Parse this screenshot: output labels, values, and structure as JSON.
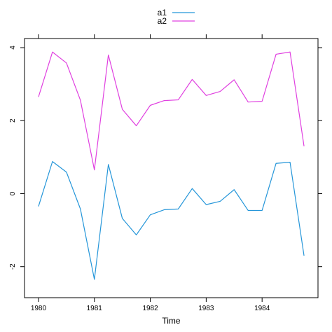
{
  "chart_data": {
    "type": "line",
    "title": "",
    "xlabel": "Time",
    "ylabel": "",
    "xlim": [
      1979.75,
      1985.0
    ],
    "ylim": [
      -2.85,
      4.25
    ],
    "grid": false,
    "legend_position": "top-center",
    "x_ticks": [
      1980,
      1981,
      1982,
      1983,
      1984
    ],
    "y_ticks": [
      -2,
      0,
      2,
      4
    ],
    "x": [
      1980.0,
      1980.25,
      1980.5,
      1980.75,
      1981.0,
      1981.25,
      1981.5,
      1981.75,
      1982.0,
      1982.25,
      1982.5,
      1982.75,
      1983.0,
      1983.25,
      1983.5,
      1983.75,
      1984.0,
      1984.25,
      1984.5,
      1984.75
    ],
    "series": [
      {
        "name": "a1",
        "color": "#2596d9",
        "values": [
          -0.35,
          0.88,
          0.59,
          -0.42,
          -2.35,
          0.8,
          -0.68,
          -1.13,
          -0.58,
          -0.44,
          -0.42,
          0.14,
          -0.3,
          -0.21,
          0.11,
          -0.46,
          -0.46,
          0.83,
          0.86,
          -1.7
        ]
      },
      {
        "name": "a2",
        "color": "#e040e0",
        "values": [
          2.65,
          3.88,
          3.58,
          2.56,
          0.65,
          3.8,
          2.31,
          1.86,
          2.42,
          2.55,
          2.57,
          3.13,
          2.69,
          2.8,
          3.12,
          2.51,
          2.53,
          3.82,
          3.88,
          1.3
        ]
      }
    ]
  }
}
